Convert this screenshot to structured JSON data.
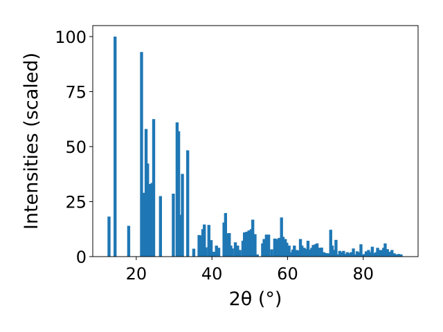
{
  "chart_data": {
    "type": "bar",
    "title": "",
    "xlabel": "2θ (°)",
    "ylabel": "Intensities (scaled)",
    "xlim": [
      8.5,
      94.5
    ],
    "ylim": [
      0,
      105
    ],
    "grid": false,
    "legend": "none",
    "bar_color": "#1f77b4",
    "bar_width": 0.8,
    "xticks": [
      20,
      40,
      60,
      80
    ],
    "yticks": [
      0,
      25,
      50,
      75,
      100
    ],
    "x": [
      12.8,
      14.4,
      18.0,
      21.4,
      22.0,
      22.6,
      23.0,
      23.6,
      24.2,
      24.6,
      26.4,
      29.8,
      30.8,
      31.2,
      31.6,
      32.2,
      33.6,
      35.2,
      36.6,
      37.0,
      37.6,
      38.0,
      38.4,
      39.2,
      39.8,
      40.4,
      41.2,
      41.8,
      43.2,
      43.6,
      44.0,
      44.6,
      45.0,
      45.4,
      46.2,
      46.8,
      47.4,
      48.2,
      48.6,
      49.2,
      49.8,
      50.4,
      50.8,
      51.4,
      52.0,
      53.4,
      53.8,
      54.4,
      55.0,
      55.8,
      56.6,
      57.2,
      57.8,
      58.4,
      58.8,
      59.4,
      59.8,
      60.4,
      61.0,
      61.4,
      61.8,
      62.4,
      62.8,
      63.4,
      63.8,
      64.4,
      64.8,
      65.4,
      65.8,
      66.4,
      66.8,
      67.4,
      67.8,
      68.4,
      69.0,
      69.6,
      70.2,
      70.8,
      71.4,
      71.8,
      72.4,
      72.8,
      73.4,
      73.8,
      74.4,
      74.8,
      75.4,
      75.8,
      76.4,
      76.8,
      77.4,
      77.8,
      78.4,
      78.8,
      79.4,
      79.8,
      80.4,
      80.8,
      81.4,
      81.8,
      82.4,
      82.8,
      83.4,
      83.8,
      84.4,
      84.8,
      85.4,
      85.8,
      86.4,
      87.0,
      87.6,
      88.2,
      88.8,
      89.4,
      90.0
    ],
    "values": [
      18.2,
      100.0,
      14.0,
      93.0,
      29.0,
      58.0,
      42.3,
      33.0,
      33.5,
      62.5,
      27.5,
      28.6,
      61.0,
      57.0,
      19.0,
      37.6,
      48.3,
      3.6,
      9.8,
      9.6,
      12.5,
      14.6,
      4.2,
      14.4,
      7.5,
      2.2,
      5.0,
      4.0,
      15.5,
      19.8,
      10.6,
      10.7,
      5.0,
      3.7,
      6.5,
      5.0,
      3.0,
      7.2,
      11.0,
      11.3,
      11.9,
      12.5,
      16.8,
      10.2,
      1.0,
      6.0,
      8.0,
      10.0,
      10.0,
      3.3,
      8.2,
      8.0,
      8.5,
      17.8,
      9.0,
      8.0,
      6.3,
      5.0,
      2.0,
      3.2,
      5.0,
      3.0,
      2.8,
      8.0,
      5.0,
      4.0,
      3.5,
      7.2,
      3.2,
      4.0,
      5.3,
      5.6,
      6.0,
      4.0,
      4.1,
      2.0,
      1.6,
      1.5,
      12.2,
      5.0,
      3.1,
      7.6,
      1.0,
      2.6,
      2.0,
      2.6,
      1.2,
      2.0,
      1.5,
      2.0,
      3.7,
      1.0,
      2.4,
      2.0,
      5.6,
      1.0,
      1.2,
      2.4,
      3.0,
      2.0,
      4.5,
      1.6,
      2.0,
      4.0,
      3.0,
      3.0,
      4.0,
      6.0,
      3.4,
      2.2,
      3.0,
      1.5,
      1.0,
      1.2,
      1.0
    ]
  }
}
